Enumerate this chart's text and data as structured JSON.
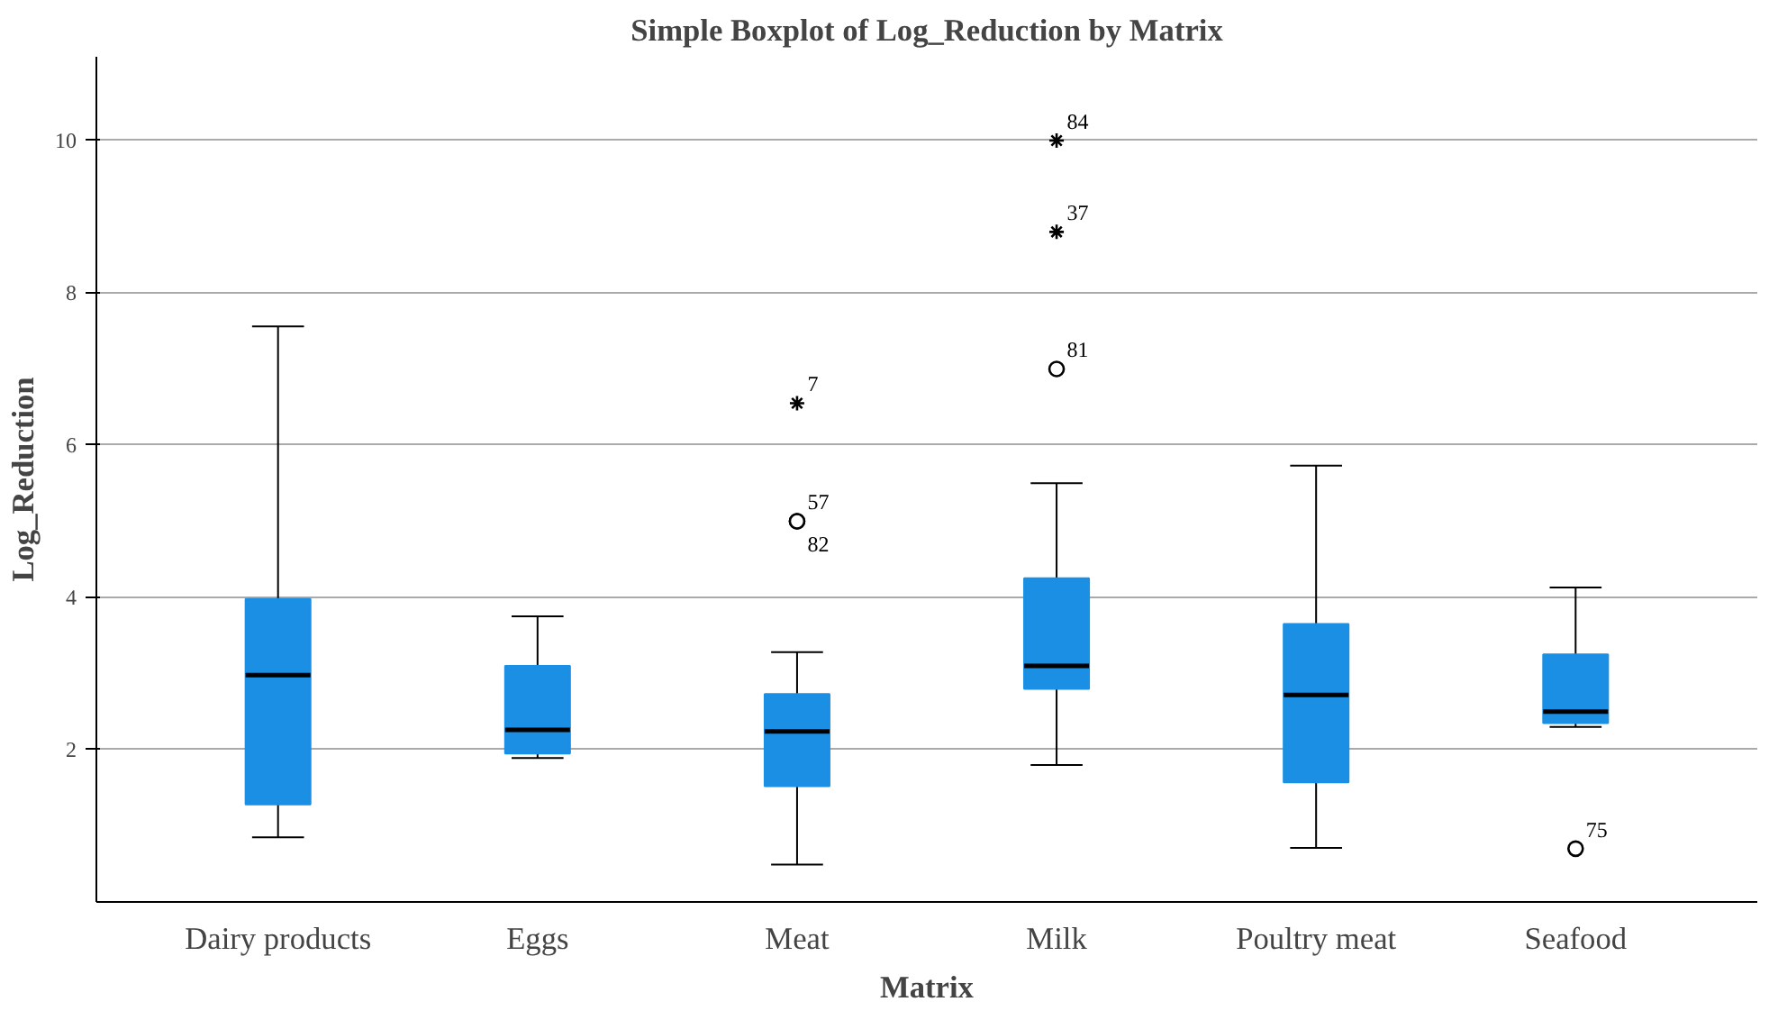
{
  "chart_data": {
    "type": "box",
    "title": "Simple Boxplot of Log_Reduction by Matrix",
    "xlabel": "Matrix",
    "ylabel": "Log_Reduction",
    "categories": [
      "Dairy products",
      "Eggs",
      "Meat",
      "Milk",
      "Poultry meat",
      "Seafood"
    ],
    "color": "#1a8fe3",
    "ylim": [
      0,
      11.1
    ],
    "yticks": [
      2,
      4,
      6,
      8,
      10
    ],
    "grid": "y",
    "boxes": [
      {
        "low": 0.85,
        "q1": 1.28,
        "median": 2.98,
        "q3": 3.98,
        "high": 7.56
      },
      {
        "low": 1.89,
        "q1": 1.95,
        "median": 2.26,
        "q3": 3.1,
        "high": 3.75
      },
      {
        "low": 0.49,
        "q1": 1.52,
        "median": 2.24,
        "q3": 2.73,
        "high": 3.28,
        "outliers": [
          6.55,
          5.0,
          5.0
        ]
      },
      {
        "low": 1.8,
        "q1": 2.8,
        "median": 3.1,
        "q3": 4.25,
        "high": 5.5,
        "outliers": [
          10.0,
          8.8,
          7.0
        ]
      },
      {
        "low": 0.71,
        "q1": 1.57,
        "median": 2.72,
        "q3": 3.65,
        "high": 5.73
      },
      {
        "low": 2.3,
        "q1": 2.35,
        "median": 2.5,
        "q3": 3.25,
        "high": 4.13,
        "outliers": [
          0.7
        ]
      }
    ],
    "annotations": [
      "7",
      "57",
      "82",
      "84",
      "37",
      "81",
      "75"
    ]
  }
}
